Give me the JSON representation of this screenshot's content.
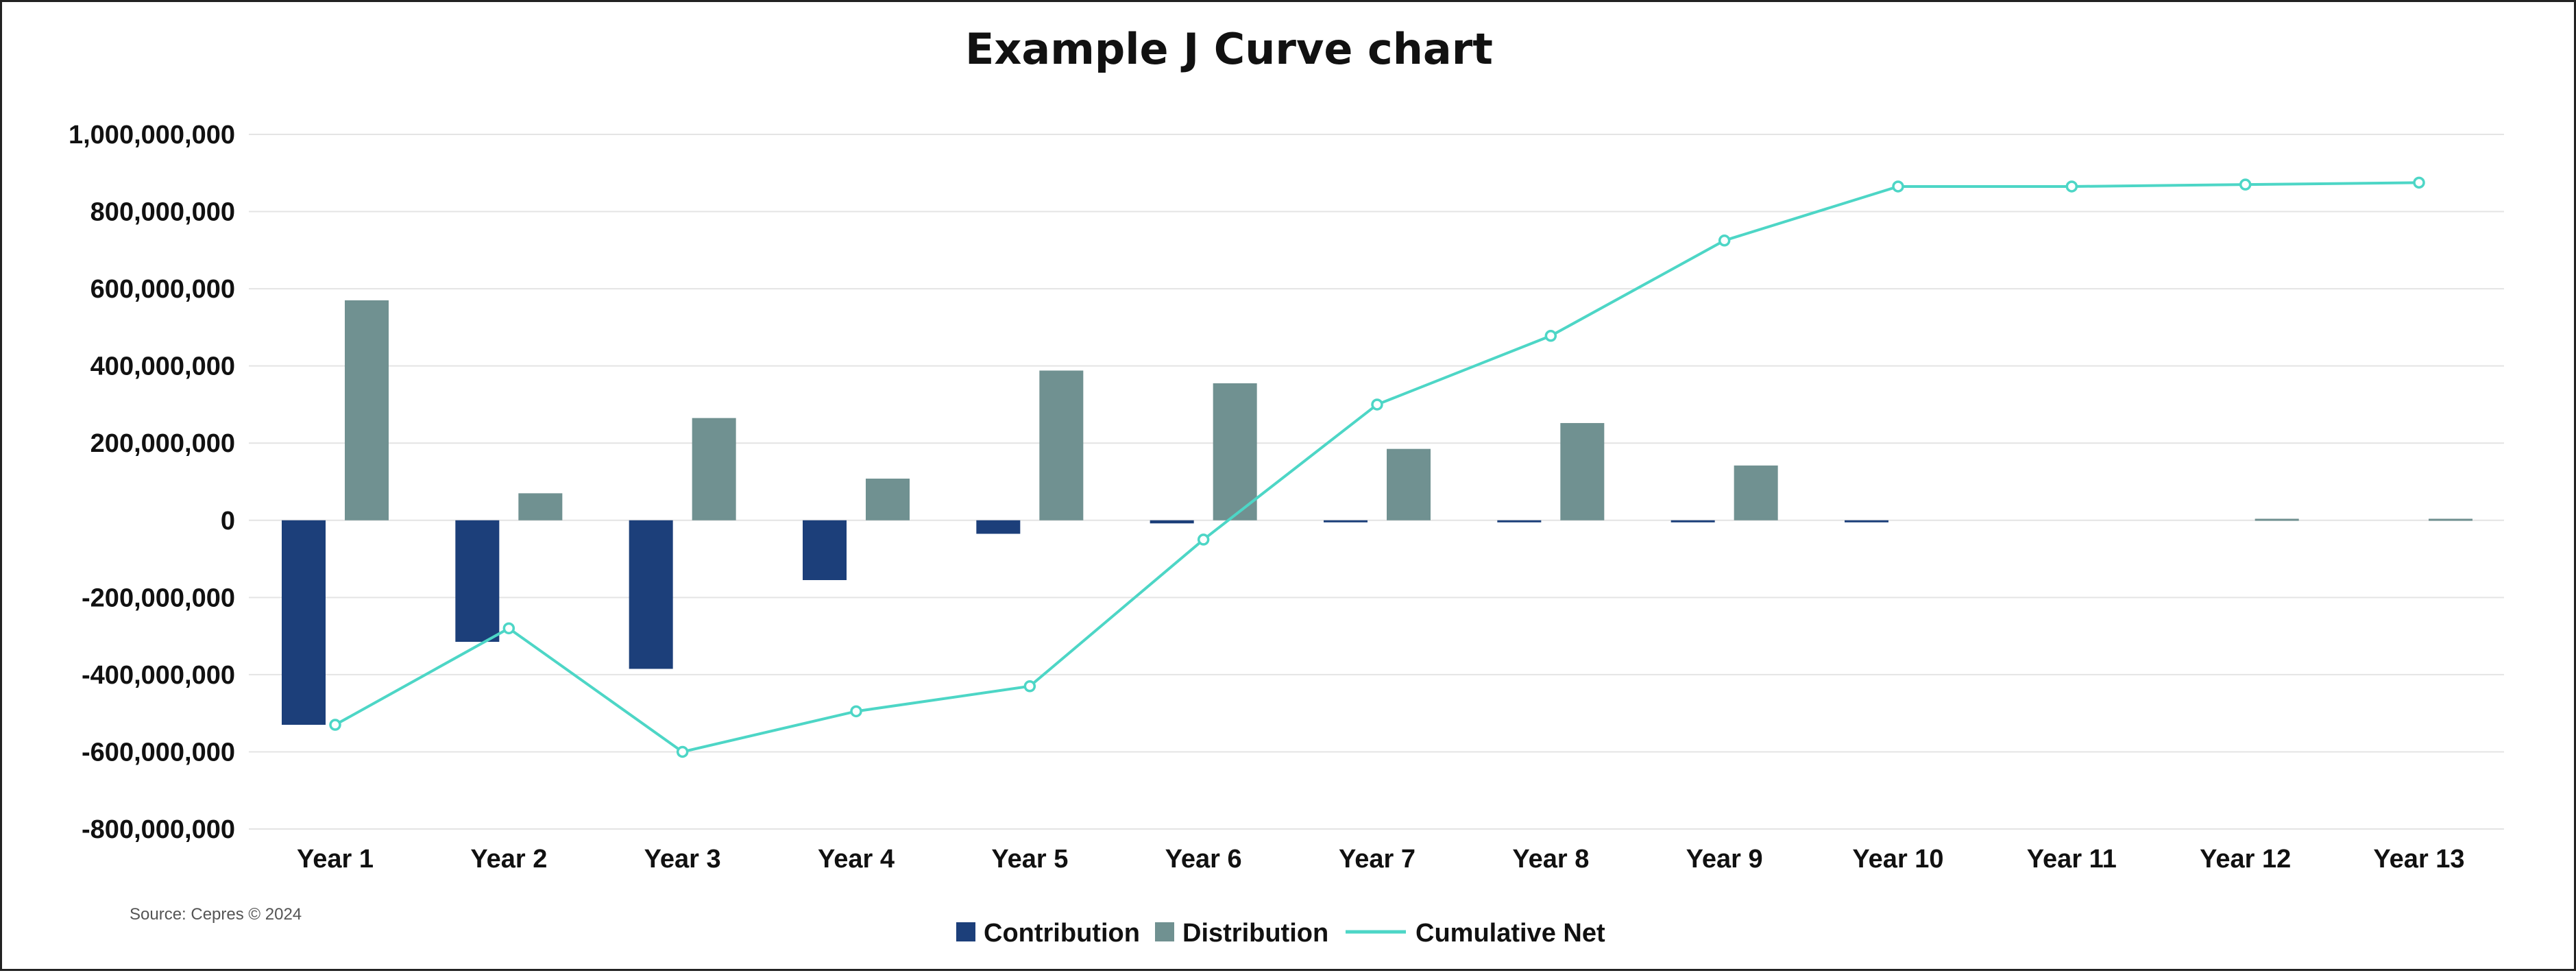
{
  "chart_data": {
    "type": "bar",
    "title": "Example J Curve chart",
    "xlabel": "",
    "ylabel": "",
    "categories": [
      "Year 1",
      "Year 2",
      "Year 3",
      "Year 4",
      "Year 5",
      "Year 6",
      "Year 7",
      "Year 8",
      "Year 9",
      "Year 10",
      "Year 11",
      "Year 12",
      "Year 13"
    ],
    "ylim": [
      -800000000,
      1000000000
    ],
    "yticks": [
      1000000000,
      800000000,
      600000000,
      400000000,
      200000000,
      0,
      -200000000,
      -400000000,
      -600000000,
      -800000000
    ],
    "ytick_labels": [
      "1,000,000,000",
      "800,000,000",
      "600,000,000",
      "400,000,000",
      "200,000,000",
      "0",
      "-200,000,000",
      "-400,000,000",
      "-600,000,000",
      "-800,000,000"
    ],
    "grid": true,
    "legend_position": "bottom-center",
    "series": [
      {
        "name": "Contribution",
        "kind": "bar",
        "color": "#1c3f7a",
        "values": [
          -530000000,
          -315000000,
          -385000000,
          -155000000,
          -35000000,
          -8000000,
          -4000000,
          -5000000,
          -3000000,
          -3000000,
          0,
          0,
          0
        ]
      },
      {
        "name": "Distribution",
        "kind": "bar",
        "color": "#709191",
        "values": [
          570000000,
          70000000,
          265000000,
          108000000,
          388000000,
          355000000,
          185000000,
          252000000,
          142000000,
          0,
          0,
          4000000,
          4000000
        ]
      },
      {
        "name": "Cumulative Net",
        "kind": "line",
        "color": "#4dd6c6",
        "values": [
          -530000000,
          -280000000,
          -600000000,
          -495000000,
          -430000000,
          -50000000,
          300000000,
          478000000,
          725000000,
          865000000,
          865000000,
          870000000,
          875000000
        ]
      }
    ],
    "source": "Source: Cepres © 2024"
  }
}
